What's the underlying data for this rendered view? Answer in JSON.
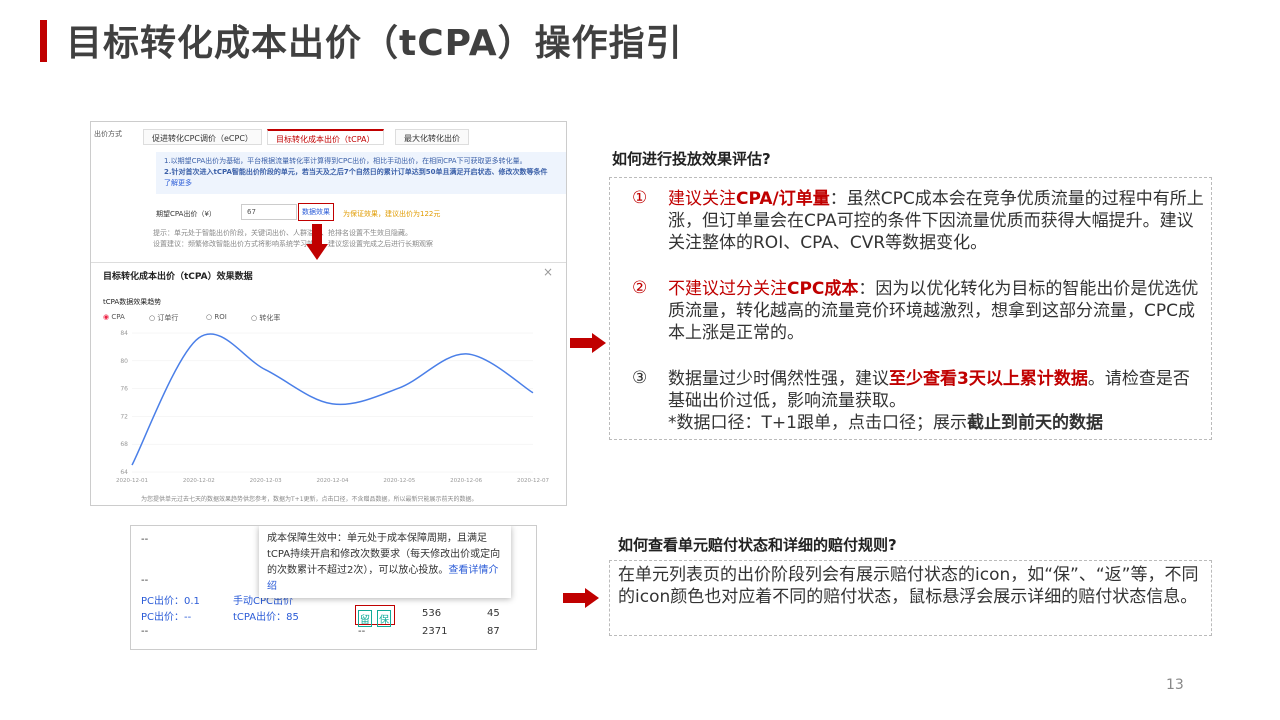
{
  "title": "目标转化成本出价（tCPA）操作指引",
  "page_number": "13",
  "bid_panel": {
    "label": "出价方式",
    "tabs": [
      "促进转化CPC调价（eCPC）",
      "目标转化成本出价（tCPA）",
      "最大化转化出价"
    ],
    "info": [
      "1.以期望CPA出价为基础，平台根据流量转化率计算得到CPC出价，相比手动出价，在相同CPA下可获取更多转化量。",
      "2.针对首次进入tCPA智能出价阶段的单元，若当天及之后7个自然日的累计订单达到50单且满足开启状态、修改次数等条件"
    ],
    "learn_more": "了解更多",
    "cpa_label": "期望CPA出价（¥）",
    "cpa_value": "67",
    "data_button": "数据效果",
    "suggestion": "为保证效果，建议出价为122元",
    "notes": [
      "提示：单元处于智能出价阶段，关键词出价、人群溢价、抢排名设置不生效且隐藏。",
      "设置建议：频繁修改智能出价方式将影响系统学习效果，建议您设置完成之后进行长期观察"
    ]
  },
  "effect_popup": {
    "title": "目标转化成本出价（tCPA）效果数据",
    "close": "×",
    "subtitle": "tCPA数据效果趋势",
    "metrics": [
      "CPA",
      "订单行",
      "ROI",
      "转化率"
    ],
    "chart_data": {
      "type": "line",
      "x": [
        "2020-12-01",
        "2020-12-02",
        "2020-12-03",
        "2020-12-04",
        "2020-12-05",
        "2020-12-06",
        "2020-12-07"
      ],
      "values": [
        65,
        83.3,
        78.7,
        73.8,
        76.1,
        81,
        75.4
      ],
      "color": "#4a7fe8",
      "ylim": [
        64,
        84
      ],
      "yticks": [
        64,
        68,
        72,
        76,
        80,
        84
      ],
      "grid": true
    },
    "footer": "为您提供单元过去七天的数据效果趋势供您参考，数据为T+1更新，点击口径，不含赠品数据，所以最新只能展示前天的数据。"
  },
  "evaluation": {
    "heading": "如何进行投放效果评估?",
    "items": [
      {
        "marker": "①",
        "red": "建议关注",
        "bold": "CPA/订单量",
        "text": "：虽然CPC成本会在竞争优质流量的过程中有所上涨，但订单量会在CPA可控的条件下因流量优质而获得大幅提升。建议关注整体的ROI、CPA、CVR等数据变化。"
      },
      {
        "marker": "②",
        "red": "不建议过分关注",
        "bold": "CPC成本",
        "text": "：因为以优化转化为目标的智能出价是优选优质流量，转化越高的流量竞价环境越激烈，想拿到这部分流量，CPC成本上涨是正常的。"
      },
      {
        "marker": "③",
        "text": "数据量过少时偶然性强，建议",
        "bold": "至少查看3天以上累计数据",
        "tail": "。请检查是否基础出价过低，影响流量获取。",
        "note": "*数据口径：T+1跟单，点击口径；展示",
        "note_bold": "截止到前天的数据"
      }
    ]
  },
  "unit_list": {
    "tooltip": "成本保障生效中：单元处于成本保障周期，且满足tCPA持续开启和修改次数要求（每天修改出价或定向的次数累计不超过2次），可以放心投放。",
    "tooltip_link": "查看详情介绍",
    "cells": [
      "--",
      "--",
      "PC出价：0.1",
      "手动CPC出价",
      "PC出价：--",
      "tCPA出价：85",
      "536",
      "45",
      "--",
      "--",
      "2371",
      "87"
    ],
    "icons": [
      "留",
      "保"
    ]
  },
  "compensation": {
    "heading": "如何查看单元赔付状态和详细的赔付规则?",
    "text": "在单元列表页的出价阶段列会有展示赔付状态的icon，如“保”、“返”等，不同的icon颜色也对应着不同的赔付状态，鼠标悬浮会展示详细的赔付状态信息。"
  }
}
